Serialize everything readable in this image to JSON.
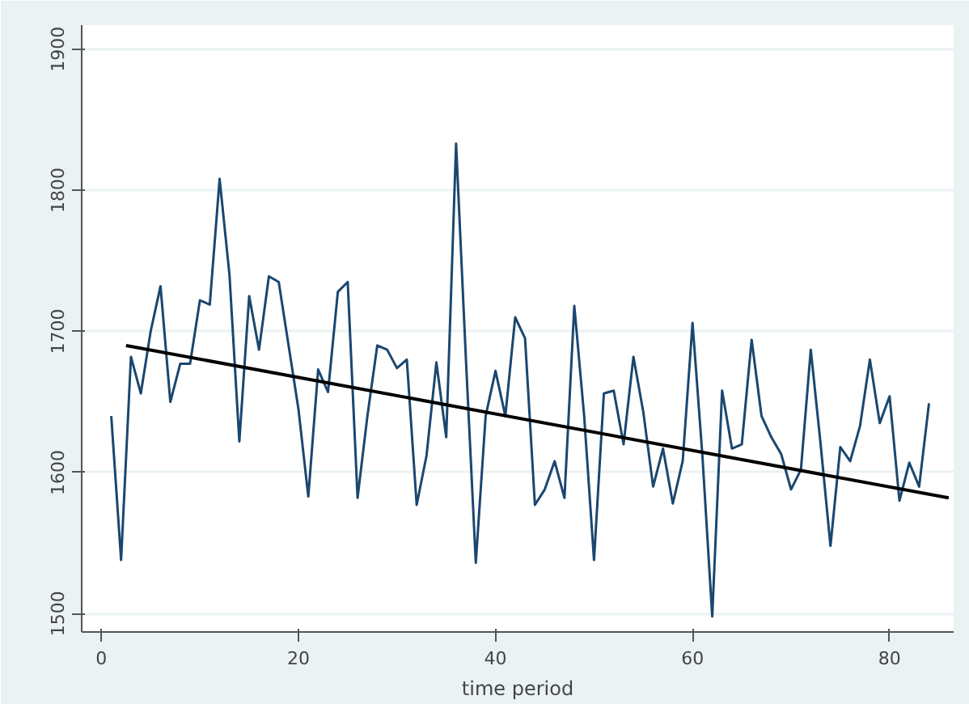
{
  "chart_data": {
    "type": "line",
    "xlabel": "time period",
    "xlim": [
      -2,
      86.5
    ],
    "ylim": [
      1487,
      1917
    ],
    "xticks": [
      0,
      20,
      40,
      60,
      80
    ],
    "yticks": [
      1500,
      1600,
      1700,
      1800,
      1900
    ],
    "grid": "y",
    "series": [
      {
        "color": "#1a476f",
        "x": [
          1,
          2,
          3,
          4,
          5,
          6,
          7,
          8,
          9,
          10,
          11,
          12,
          13,
          14,
          15,
          16,
          17,
          18,
          19,
          20,
          21,
          22,
          23,
          24,
          25,
          26,
          27,
          28,
          29,
          30,
          31,
          32,
          33,
          34,
          35,
          36,
          37,
          38,
          39,
          40,
          41,
          42,
          43,
          44,
          45,
          46,
          47,
          48,
          49,
          50,
          51,
          52,
          53,
          54,
          55,
          56,
          57,
          58,
          59,
          60,
          61,
          62,
          63,
          64,
          65,
          66,
          67,
          68,
          69,
          70,
          71,
          72,
          73,
          74,
          75,
          76,
          77,
          78,
          79,
          80,
          81,
          82,
          83,
          84
        ],
        "values": [
          1640,
          1538,
          1682,
          1656,
          1700,
          1732,
          1650,
          1677,
          1677,
          1722,
          1719,
          1808,
          1740,
          1622,
          1725,
          1687,
          1739,
          1735,
          1690,
          1645,
          1583,
          1673,
          1657,
          1728,
          1735,
          1582,
          1640,
          1690,
          1687,
          1674,
          1680,
          1577,
          1612,
          1678,
          1625,
          1833,
          1680,
          1536,
          1640,
          1672,
          1640,
          1710,
          1695,
          1577,
          1588,
          1608,
          1582,
          1718,
          1640,
          1538,
          1656,
          1658,
          1620,
          1682,
          1643,
          1590,
          1617,
          1578,
          1608,
          1706,
          1612,
          1498,
          1658,
          1617,
          1620,
          1694,
          1640,
          1625,
          1613,
          1588,
          1602,
          1687,
          1620,
          1548,
          1618,
          1608,
          1633,
          1680,
          1635,
          1654,
          1580,
          1607,
          1590,
          1649
        ]
      },
      {
        "type": "line",
        "color": "#000000",
        "x": [
          2.5,
          86
        ],
        "values": [
          1690,
          1582
        ]
      }
    ]
  }
}
